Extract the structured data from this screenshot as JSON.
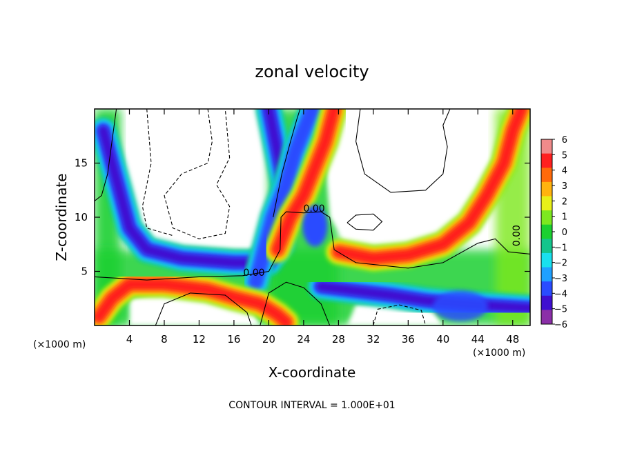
{
  "chart_data": {
    "type": "heatmap",
    "title": "zonal velocity",
    "xlabel": "X-coordinate",
    "ylabel": "Z-coordinate",
    "x_unit": "(×1000 m)",
    "x_unit_right": "(×1000 m)",
    "xlim": [
      0,
      50
    ],
    "ylim": [
      0,
      20
    ],
    "x_ticks": [
      4,
      8,
      12,
      16,
      20,
      24,
      28,
      32,
      36,
      40,
      44,
      48
    ],
    "y_ticks": [
      5,
      10,
      15
    ],
    "colorbar": {
      "min": -6,
      "max": 6,
      "ticks": [
        6,
        5,
        4,
        3,
        2,
        1,
        0,
        -1,
        -2,
        -3,
        -4,
        -5,
        -6
      ],
      "tick_labels": [
        "6",
        "5",
        "4",
        "3",
        "2",
        "1",
        "0",
        "−1",
        "−2",
        "−3",
        "−4",
        "−5",
        "−6"
      ]
    },
    "contour_labels": [
      {
        "text": "0.00",
        "x": 25.2,
        "y": 10.5
      },
      {
        "text": "0.00",
        "x": 18.3,
        "y": 4.6
      },
      {
        "text": "0.00",
        "x": 48.8,
        "y": 8.3
      }
    ],
    "footer": "CONTOUR INTERVAL = 1.000E+01",
    "field": {
      "bands": [
        {
          "name": "outer-left-band",
          "value": -5,
          "points": [
            [
              1,
              18
            ],
            [
              2,
              15
            ],
            [
              3,
              12
            ],
            [
              4,
              9
            ],
            [
              6,
              7
            ],
            [
              10,
              6.2
            ],
            [
              16,
              5.8
            ],
            [
              20,
              5.8
            ],
            [
              21.5,
              7.5
            ],
            [
              22,
              12
            ],
            [
              21,
              16
            ],
            [
              20,
              20
            ]
          ]
        },
        {
          "name": "center-plume",
          "value": -4,
          "points": [
            [
              18.5,
              4
            ],
            [
              19.5,
              7
            ],
            [
              20.5,
              10
            ],
            [
              22,
              13
            ],
            [
              23,
              16
            ],
            [
              24,
              18
            ],
            [
              25,
              20
            ]
          ]
        },
        {
          "name": "center-red-plume",
          "value": 5,
          "points": [
            [
              21,
              7
            ],
            [
              22.5,
              10
            ],
            [
              24,
              12
            ],
            [
              25.5,
              15
            ],
            [
              26.5,
              17
            ],
            [
              27.5,
              20
            ]
          ]
        },
        {
          "name": "right-red-band",
          "value": 5,
          "points": [
            [
              28,
              6.8
            ],
            [
              32,
              6.2
            ],
            [
              36,
              6.5
            ],
            [
              40,
              7.5
            ],
            [
              43,
              9.5
            ],
            [
              45,
              12
            ],
            [
              47,
              15
            ],
            [
              48,
              18
            ],
            [
              49,
              20
            ]
          ]
        },
        {
          "name": "low-red-band",
          "value": 5,
          "points": [
            [
              0.5,
              0.8
            ],
            [
              2,
              2.5
            ],
            [
              4,
              3.8
            ],
            [
              8,
              3.8
            ],
            [
              13,
              3.3
            ],
            [
              16,
              2.6
            ],
            [
              19,
              2
            ],
            [
              21,
              1
            ],
            [
              22,
              0.3
            ]
          ]
        },
        {
          "name": "low-blue-band",
          "value": -5,
          "points": [
            [
              26,
              3.6
            ],
            [
              30,
              3.2
            ],
            [
              34,
              2.8
            ],
            [
              38,
              2.3
            ],
            [
              42,
              2
            ],
            [
              46,
              1.8
            ],
            [
              50,
              1.6
            ]
          ]
        }
      ]
    }
  },
  "colors": {
    "colorbar": [
      "#8b2fa8",
      "#3f0fd0",
      "#2a4cff",
      "#1fa0ff",
      "#19e0ee",
      "#13c58c",
      "#1bd030",
      "#7de81f",
      "#e8f018",
      "#ffb30f",
      "#ff6a0a",
      "#ff1f1f",
      "#f08a8a"
    ],
    "contour": "#000000",
    "background": "#ffffff"
  }
}
